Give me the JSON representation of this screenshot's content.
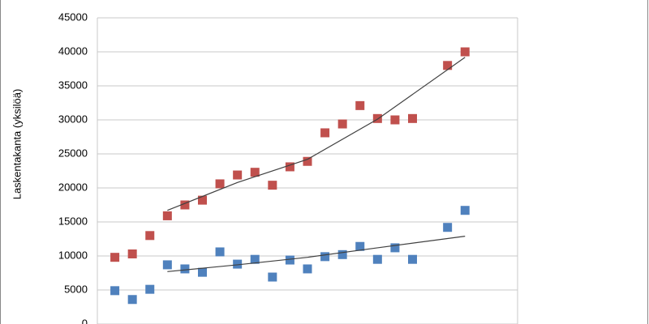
{
  "chart_data": {
    "type": "scatter",
    "y_label": "Laskentakanta (yksilöä)",
    "x": [
      1,
      2,
      3,
      4,
      5,
      6,
      7,
      8,
      9,
      10,
      11,
      12,
      13,
      14,
      15,
      16,
      17,
      18,
      20,
      21
    ],
    "xlim": [
      0,
      24
    ],
    "ylim": [
      0,
      45000
    ],
    "yticks": [
      0,
      5000,
      10000,
      15000,
      20000,
      25000,
      30000,
      35000,
      40000,
      45000
    ],
    "grid": true,
    "series": [
      {
        "color": "#c0504d",
        "values": [
          9800,
          10300,
          13000,
          15900,
          17500,
          18200,
          20600,
          21900,
          22300,
          20400,
          23100,
          23900,
          28100,
          29400,
          32100,
          30200,
          30000,
          30200,
          38000,
          40000
        ]
      },
      {
        "color": "#4f81bd",
        "values": [
          4900,
          3600,
          5100,
          8700,
          8100,
          7600,
          10600,
          8800,
          9500,
          6900,
          9400,
          8100,
          9900,
          10200,
          11400,
          9500,
          11200,
          9500,
          14200,
          16700
        ]
      }
    ],
    "trendlines": [
      {
        "color": "#404040",
        "x": [
          4,
          8,
          12,
          16,
          21
        ],
        "values": [
          16700,
          20800,
          24200,
          30100,
          39200
        ]
      },
      {
        "color": "#404040",
        "x": [
          4,
          8,
          12,
          16,
          21
        ],
        "values": [
          7700,
          8700,
          9800,
          11200,
          12900
        ]
      }
    ]
  }
}
